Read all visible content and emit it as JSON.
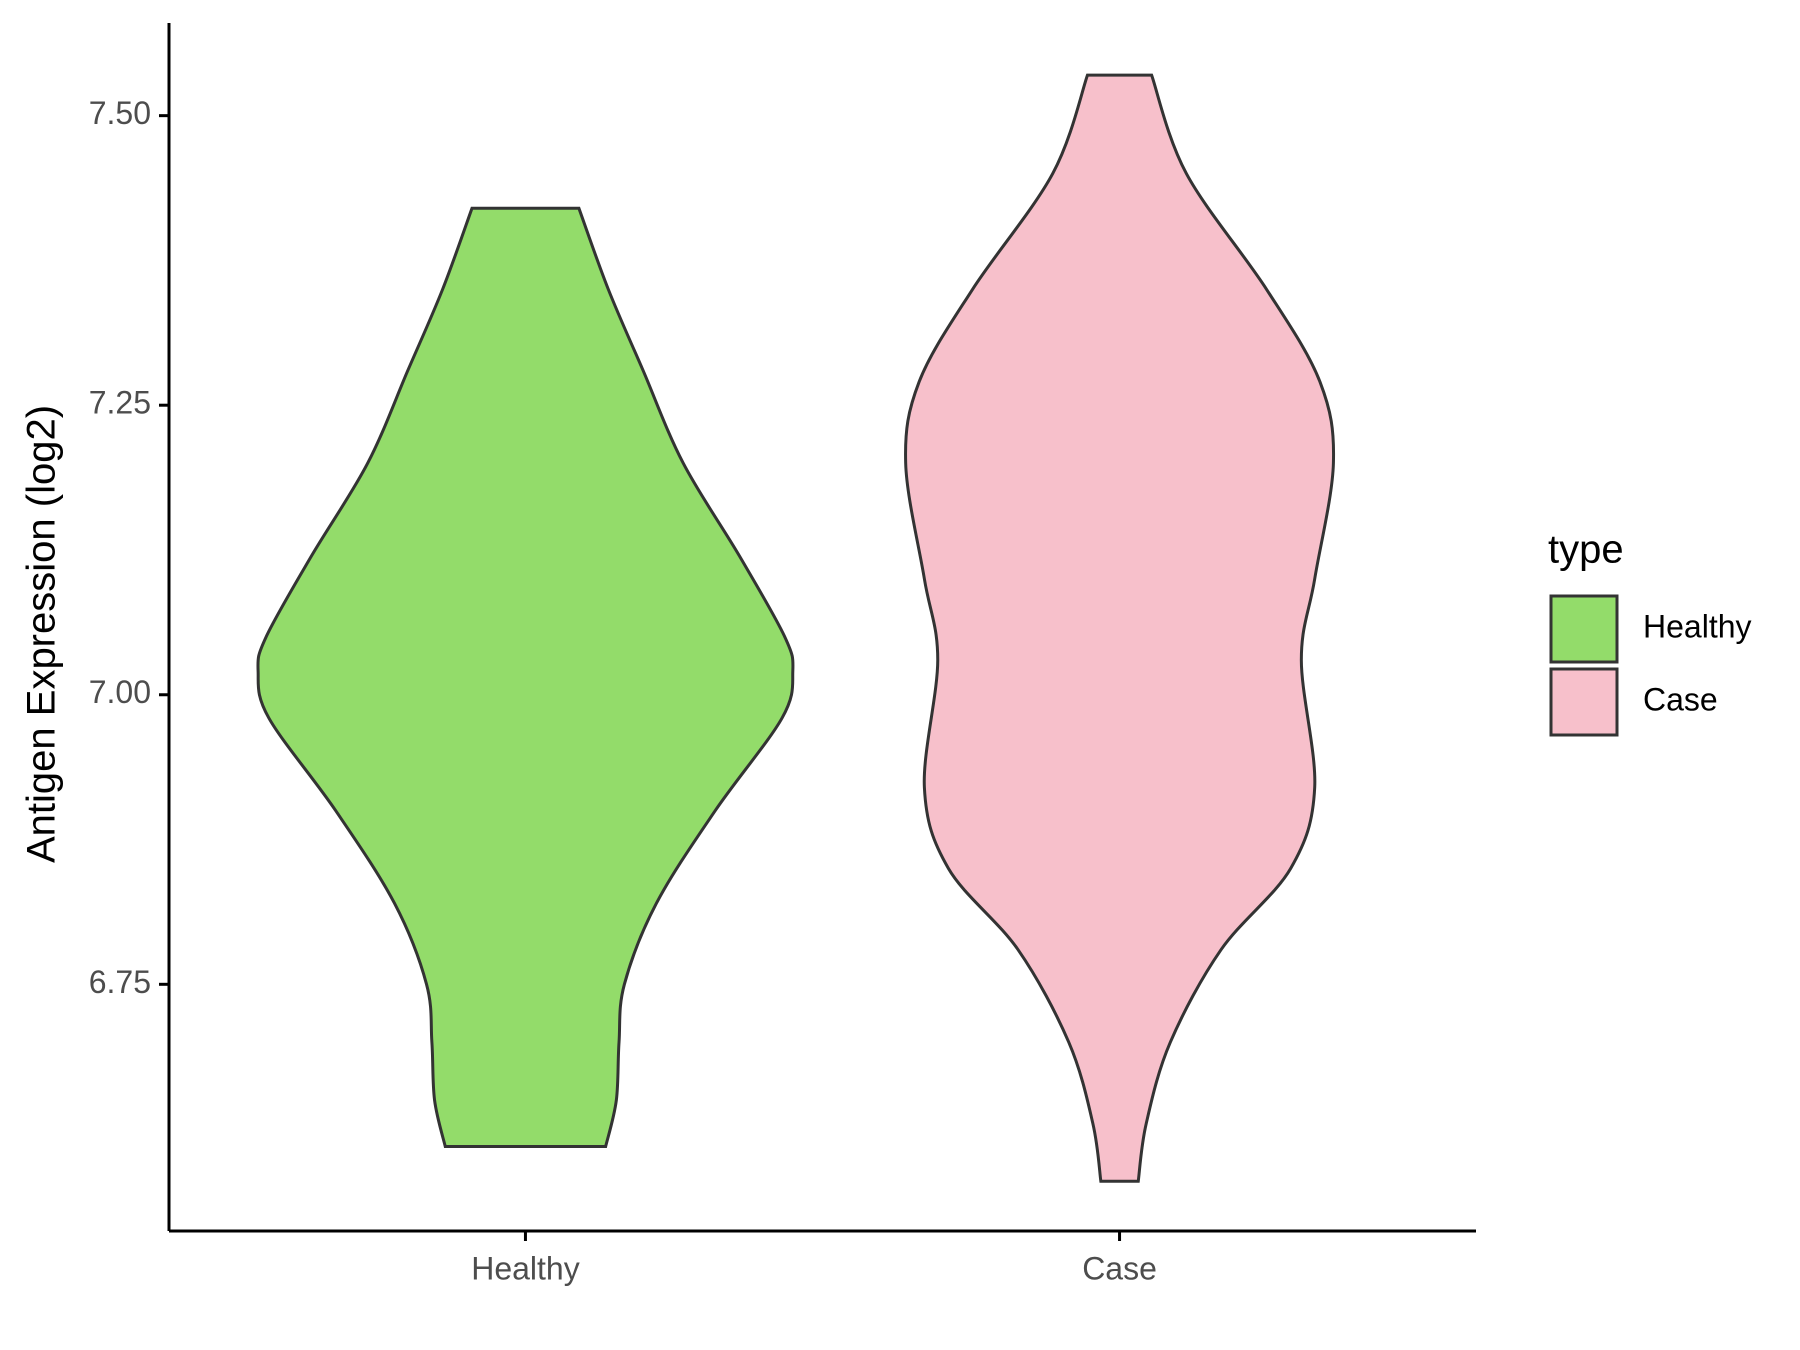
{
  "chart_data": {
    "type": "violin",
    "y_label": "Antigen Expression (log2)",
    "categories": [
      "Healthy",
      "Case"
    ],
    "legend_title": "type",
    "ylim": [
      6.537,
      7.58
    ],
    "yticks": [
      6.75,
      {
        "value": 7.0,
        "label": "7.00"
      },
      7.25,
      {
        "value": 7.5,
        "label": "7.50"
      }
    ],
    "series": [
      {
        "name": "Healthy",
        "color": "#93dc6a",
        "y": [
          7.42,
          7.35,
          7.28,
          7.2,
          7.12,
          7.05,
          7.02,
          6.98,
          6.9,
          6.82,
          6.75,
          6.7,
          6.65,
          6.61
        ],
        "width": [
          0.2,
          0.31,
          0.44,
          0.59,
          0.8,
          0.97,
          1.0,
          0.96,
          0.71,
          0.49,
          0.37,
          0.35,
          0.34,
          0.3
        ]
      },
      {
        "name": "Case",
        "color": "#f7c0cb",
        "y": [
          7.535,
          7.45,
          7.35,
          7.27,
          7.2,
          7.1,
          7.03,
          6.92,
          6.85,
          6.78,
          6.7,
          6.63,
          6.58
        ],
        "width": [
          0.12,
          0.25,
          0.55,
          0.75,
          0.8,
          0.73,
          0.68,
          0.73,
          0.64,
          0.38,
          0.19,
          0.1,
          0.07
        ]
      }
    ]
  }
}
